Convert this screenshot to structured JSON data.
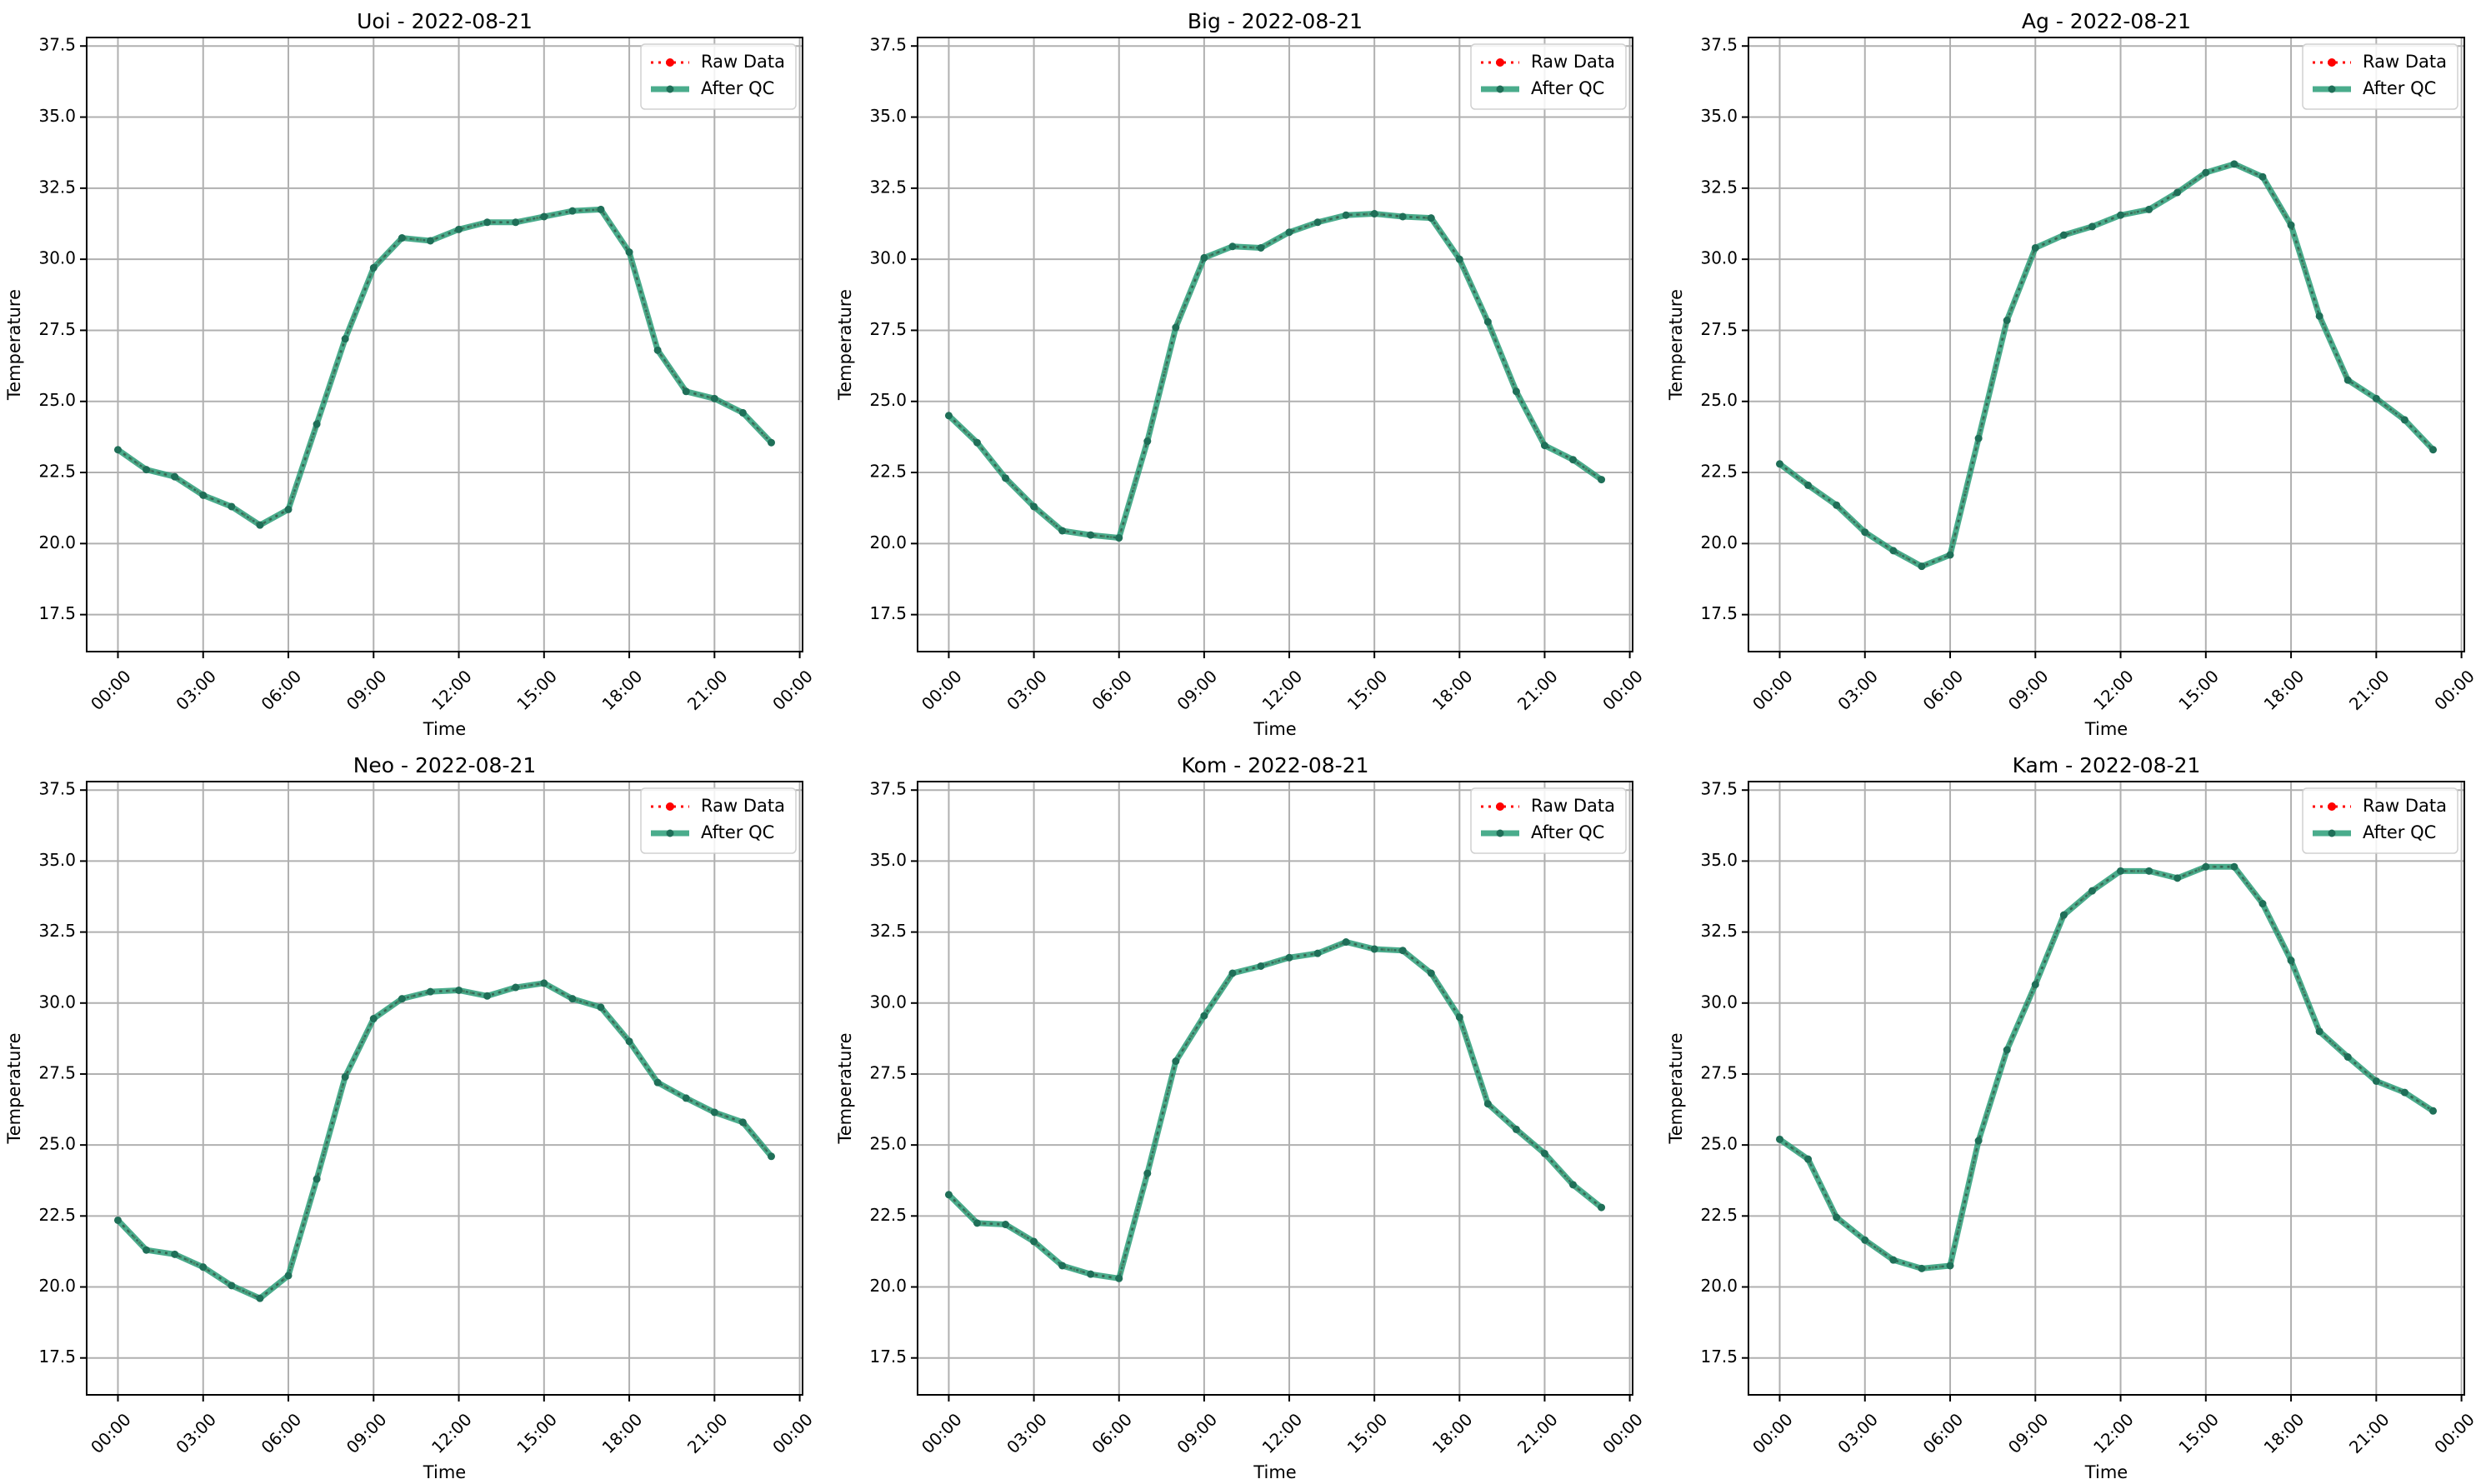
{
  "chart_data": [
    {
      "type": "line",
      "title": "Uoi - 2022-08-21",
      "xlabel": "Time",
      "ylabel": "Temperature",
      "x_ticks": [
        "00:00",
        "03:00",
        "06:00",
        "09:00",
        "12:00",
        "15:00",
        "18:00",
        "21:00",
        "00:00"
      ],
      "y_ticks": [
        "17.5",
        "20.0",
        "22.5",
        "25.0",
        "27.5",
        "30.0",
        "32.5",
        "35.0",
        "37.5"
      ],
      "ylim": [
        16.2,
        37.8
      ],
      "xlim_hours": [
        -1.1,
        24.1
      ],
      "grid": true,
      "legend_position": "top-right",
      "x": [
        0,
        1,
        2,
        3,
        4,
        5,
        6,
        7,
        8,
        9,
        10,
        11,
        12,
        13,
        14,
        15,
        16,
        17,
        18,
        19,
        20,
        21,
        22,
        23
      ],
      "series": [
        {
          "name": "Raw Data",
          "values": [
            23.3,
            22.6,
            22.35,
            21.7,
            21.3,
            20.65,
            21.2,
            24.2,
            27.2,
            29.7,
            30.75,
            30.65,
            31.05,
            31.3,
            31.3,
            31.5,
            31.7,
            31.75,
            30.25,
            26.8,
            25.35,
            25.1,
            24.6,
            23.55
          ]
        },
        {
          "name": "After QC",
          "values": [
            23.3,
            22.6,
            22.35,
            21.7,
            21.3,
            20.65,
            21.2,
            24.2,
            27.2,
            29.7,
            30.75,
            30.65,
            31.05,
            31.3,
            31.3,
            31.5,
            31.7,
            31.75,
            30.25,
            26.8,
            25.35,
            25.1,
            24.6,
            23.55
          ]
        }
      ]
    },
    {
      "type": "line",
      "title": "Big - 2022-08-21",
      "xlabel": "Time",
      "ylabel": "Temperature",
      "x_ticks": [
        "00:00",
        "03:00",
        "06:00",
        "09:00",
        "12:00",
        "15:00",
        "18:00",
        "21:00",
        "00:00"
      ],
      "y_ticks": [
        "17.5",
        "20.0",
        "22.5",
        "25.0",
        "27.5",
        "30.0",
        "32.5",
        "35.0",
        "37.5"
      ],
      "ylim": [
        16.2,
        37.8
      ],
      "xlim_hours": [
        -1.1,
        24.1
      ],
      "grid": true,
      "legend_position": "top-right",
      "x": [
        0,
        1,
        2,
        3,
        4,
        5,
        6,
        7,
        8,
        9,
        10,
        11,
        12,
        13,
        14,
        15,
        16,
        17,
        18,
        19,
        20,
        21,
        22,
        23
      ],
      "series": [
        {
          "name": "Raw Data",
          "values": [
            24.5,
            23.55,
            22.3,
            21.3,
            20.45,
            20.3,
            20.2,
            23.6,
            27.6,
            30.05,
            30.45,
            30.4,
            30.95,
            31.3,
            31.55,
            31.6,
            31.5,
            31.45,
            30.0,
            27.8,
            25.35,
            23.45,
            22.95,
            22.25
          ]
        },
        {
          "name": "After QC",
          "values": [
            24.5,
            23.55,
            22.3,
            21.3,
            20.45,
            20.3,
            20.2,
            23.6,
            27.6,
            30.05,
            30.45,
            30.4,
            30.95,
            31.3,
            31.55,
            31.6,
            31.5,
            31.45,
            30.0,
            27.8,
            25.35,
            23.45,
            22.95,
            22.25
          ]
        }
      ]
    },
    {
      "type": "line",
      "title": "Ag - 2022-08-21",
      "xlabel": "Time",
      "ylabel": "Temperature",
      "x_ticks": [
        "00:00",
        "03:00",
        "06:00",
        "09:00",
        "12:00",
        "15:00",
        "18:00",
        "21:00",
        "00:00"
      ],
      "y_ticks": [
        "17.5",
        "20.0",
        "22.5",
        "25.0",
        "27.5",
        "30.0",
        "32.5",
        "35.0",
        "37.5"
      ],
      "ylim": [
        16.2,
        37.8
      ],
      "xlim_hours": [
        -1.1,
        24.1
      ],
      "grid": true,
      "legend_position": "top-right",
      "x": [
        0,
        1,
        2,
        3,
        4,
        5,
        6,
        7,
        8,
        9,
        10,
        11,
        12,
        13,
        14,
        15,
        16,
        17,
        18,
        19,
        20,
        21,
        22,
        23
      ],
      "series": [
        {
          "name": "Raw Data",
          "values": [
            22.8,
            22.05,
            21.35,
            20.4,
            19.75,
            19.2,
            19.6,
            23.7,
            27.85,
            30.4,
            30.85,
            31.15,
            31.55,
            31.75,
            32.35,
            33.05,
            33.35,
            32.9,
            31.2,
            28.0,
            25.75,
            25.1,
            24.35,
            23.3
          ]
        },
        {
          "name": "After QC",
          "values": [
            22.8,
            22.05,
            21.35,
            20.4,
            19.75,
            19.2,
            19.6,
            23.7,
            27.85,
            30.4,
            30.85,
            31.15,
            31.55,
            31.75,
            32.35,
            33.05,
            33.35,
            32.9,
            31.2,
            28.0,
            25.75,
            25.1,
            24.35,
            23.3
          ]
        }
      ]
    },
    {
      "type": "line",
      "title": "Neo - 2022-08-21",
      "xlabel": "Time",
      "ylabel": "Temperature",
      "x_ticks": [
        "00:00",
        "03:00",
        "06:00",
        "09:00",
        "12:00",
        "15:00",
        "18:00",
        "21:00",
        "00:00"
      ],
      "y_ticks": [
        "17.5",
        "20.0",
        "22.5",
        "25.0",
        "27.5",
        "30.0",
        "32.5",
        "35.0",
        "37.5"
      ],
      "ylim": [
        16.2,
        37.8
      ],
      "xlim_hours": [
        -1.1,
        24.1
      ],
      "grid": true,
      "legend_position": "top-right",
      "x": [
        0,
        1,
        2,
        3,
        4,
        5,
        6,
        7,
        8,
        9,
        10,
        11,
        12,
        13,
        14,
        15,
        16,
        17,
        18,
        19,
        20,
        21,
        22,
        23
      ],
      "series": [
        {
          "name": "Raw Data",
          "values": [
            22.35,
            21.3,
            21.15,
            20.7,
            20.05,
            19.6,
            20.4,
            23.8,
            27.4,
            29.45,
            30.15,
            30.4,
            30.45,
            30.25,
            30.55,
            30.7,
            30.15,
            29.85,
            28.65,
            27.2,
            26.65,
            26.15,
            25.8,
            24.6
          ]
        },
        {
          "name": "After QC",
          "values": [
            22.35,
            21.3,
            21.15,
            20.7,
            20.05,
            19.6,
            20.4,
            23.8,
            27.4,
            29.45,
            30.15,
            30.4,
            30.45,
            30.25,
            30.55,
            30.7,
            30.15,
            29.85,
            28.65,
            27.2,
            26.65,
            26.15,
            25.8,
            24.6
          ]
        }
      ]
    },
    {
      "type": "line",
      "title": "Kom - 2022-08-21",
      "xlabel": "Time",
      "ylabel": "Temperature",
      "x_ticks": [
        "00:00",
        "03:00",
        "06:00",
        "09:00",
        "12:00",
        "15:00",
        "18:00",
        "21:00",
        "00:00"
      ],
      "y_ticks": [
        "17.5",
        "20.0",
        "22.5",
        "25.0",
        "27.5",
        "30.0",
        "32.5",
        "35.0",
        "37.5"
      ],
      "ylim": [
        16.2,
        37.8
      ],
      "xlim_hours": [
        -1.1,
        24.1
      ],
      "grid": true,
      "legend_position": "top-right",
      "x": [
        0,
        1,
        2,
        3,
        4,
        5,
        6,
        7,
        8,
        9,
        10,
        11,
        12,
        13,
        14,
        15,
        16,
        17,
        18,
        19,
        20,
        21,
        22,
        23
      ],
      "series": [
        {
          "name": "Raw Data",
          "values": [
            23.25,
            22.25,
            22.2,
            21.6,
            20.75,
            20.45,
            20.3,
            24.0,
            27.95,
            29.55,
            31.05,
            31.3,
            31.6,
            31.75,
            32.15,
            31.9,
            31.85,
            31.05,
            29.5,
            26.45,
            25.55,
            24.7,
            23.6,
            22.8
          ]
        },
        {
          "name": "After QC",
          "values": [
            23.25,
            22.25,
            22.2,
            21.6,
            20.75,
            20.45,
            20.3,
            24.0,
            27.95,
            29.55,
            31.05,
            31.3,
            31.6,
            31.75,
            32.15,
            31.9,
            31.85,
            31.05,
            29.5,
            26.45,
            25.55,
            24.7,
            23.6,
            22.8
          ]
        }
      ]
    },
    {
      "type": "line",
      "title": "Kam - 2022-08-21",
      "xlabel": "Time",
      "ylabel": "Temperature",
      "x_ticks": [
        "00:00",
        "03:00",
        "06:00",
        "09:00",
        "12:00",
        "15:00",
        "18:00",
        "21:00",
        "00:00"
      ],
      "y_ticks": [
        "17.5",
        "20.0",
        "22.5",
        "25.0",
        "27.5",
        "30.0",
        "32.5",
        "35.0",
        "37.5"
      ],
      "ylim": [
        16.2,
        37.8
      ],
      "xlim_hours": [
        -1.1,
        24.1
      ],
      "grid": true,
      "legend_position": "top-right",
      "x": [
        0,
        1,
        2,
        3,
        4,
        5,
        6,
        7,
        8,
        9,
        10,
        11,
        12,
        13,
        14,
        15,
        16,
        17,
        18,
        19,
        20,
        21,
        22,
        23
      ],
      "series": [
        {
          "name": "Raw Data",
          "values": [
            25.2,
            24.5,
            22.45,
            21.65,
            20.95,
            20.65,
            20.75,
            25.15,
            28.35,
            30.65,
            33.1,
            33.95,
            34.65,
            34.65,
            34.4,
            34.8,
            34.8,
            33.5,
            31.5,
            29.0,
            28.1,
            27.25,
            26.85,
            26.2
          ]
        },
        {
          "name": "After QC",
          "values": [
            25.2,
            24.5,
            22.45,
            21.65,
            20.95,
            20.65,
            20.75,
            25.15,
            28.35,
            30.65,
            33.1,
            33.95,
            34.65,
            34.65,
            34.4,
            34.8,
            34.8,
            33.5,
            31.5,
            29.0,
            28.1,
            27.25,
            26.85,
            26.2
          ]
        }
      ]
    }
  ],
  "colors": {
    "raw": "#ff0000",
    "after_qc": "#2a9d78",
    "after_qc_marker": "#1f6f58",
    "grid": "#b0b0b0",
    "frame": "#000000"
  }
}
